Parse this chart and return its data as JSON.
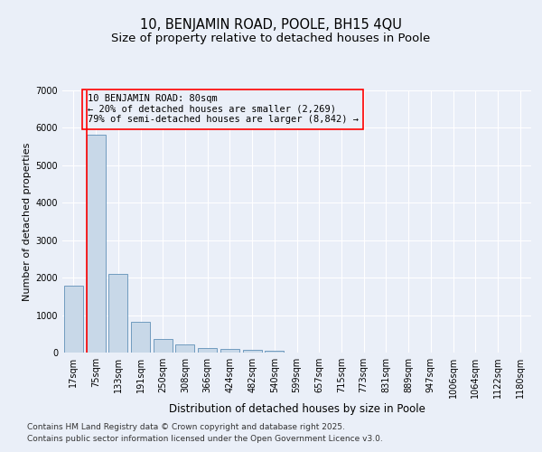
{
  "title_line1": "10, BENJAMIN ROAD, POOLE, BH15 4QU",
  "title_line2": "Size of property relative to detached houses in Poole",
  "xlabel": "Distribution of detached houses by size in Poole",
  "ylabel": "Number of detached properties",
  "categories": [
    "17sqm",
    "75sqm",
    "133sqm",
    "191sqm",
    "250sqm",
    "308sqm",
    "366sqm",
    "424sqm",
    "482sqm",
    "540sqm",
    "599sqm",
    "657sqm",
    "715sqm",
    "773sqm",
    "831sqm",
    "889sqm",
    "947sqm",
    "1006sqm",
    "1064sqm",
    "1122sqm",
    "1180sqm"
  ],
  "values": [
    1780,
    5820,
    2100,
    820,
    360,
    210,
    130,
    100,
    80,
    60,
    0,
    0,
    0,
    0,
    0,
    0,
    0,
    0,
    0,
    0,
    0
  ],
  "bar_color": "#c8d8e8",
  "bar_edge_color": "#6090b8",
  "vline_color": "red",
  "annotation_text": "10 BENJAMIN ROAD: 80sqm\n← 20% of detached houses are smaller (2,269)\n79% of semi-detached houses are larger (8,842) →",
  "annotation_box_color": "red",
  "ylim": [
    0,
    7000
  ],
  "yticks": [
    0,
    1000,
    2000,
    3000,
    4000,
    5000,
    6000,
    7000
  ],
  "bg_color": "#eaeff8",
  "plot_bg_color": "#eaeff8",
  "footer_line1": "Contains HM Land Registry data © Crown copyright and database right 2025.",
  "footer_line2": "Contains public sector information licensed under the Open Government Licence v3.0.",
  "grid_color": "#ffffff",
  "title_fontsize": 10.5,
  "subtitle_fontsize": 9.5,
  "annotation_fontsize": 7.5,
  "tick_fontsize": 7,
  "footer_fontsize": 6.5,
  "ylabel_fontsize": 8,
  "xlabel_fontsize": 8.5
}
